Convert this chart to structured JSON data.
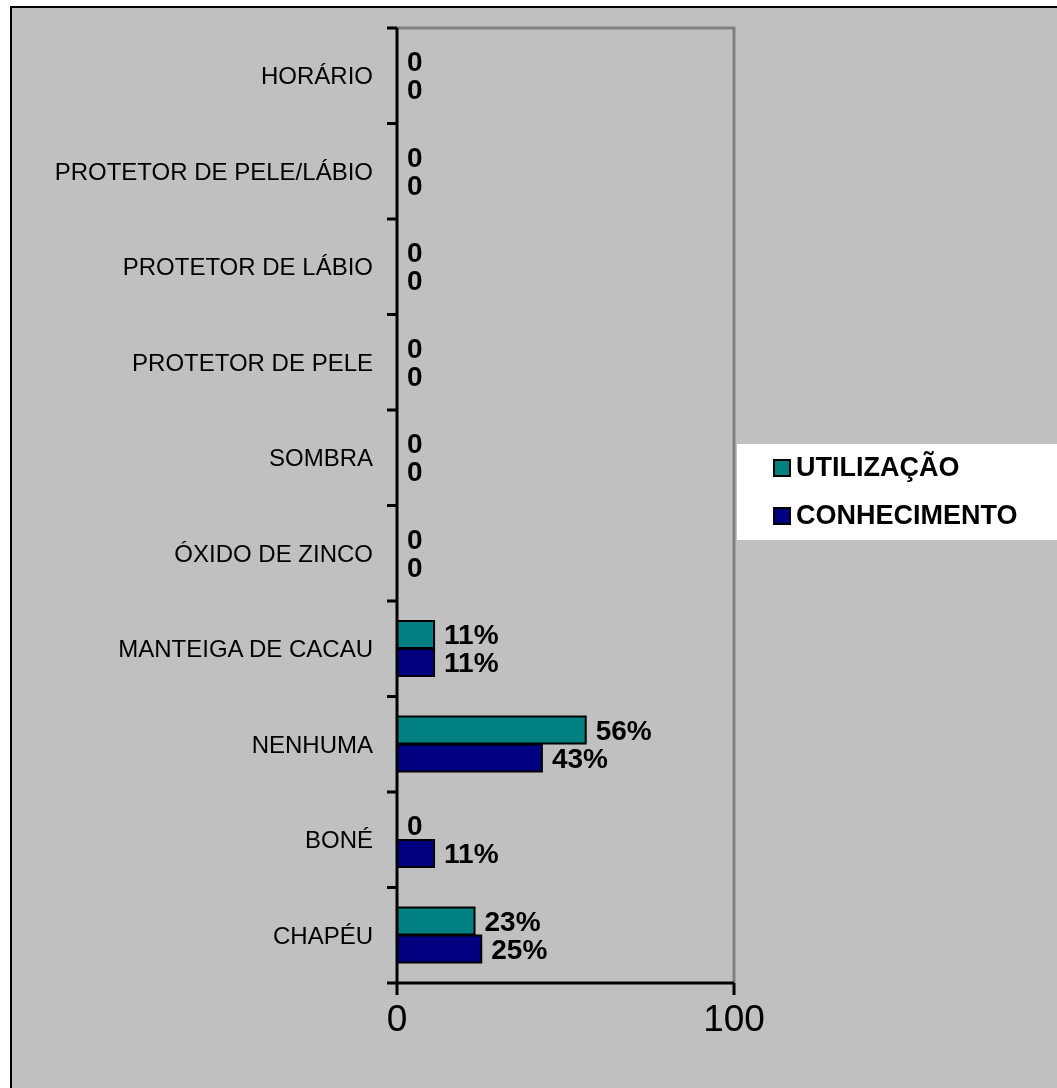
{
  "chart_data": {
    "type": "bar",
    "orientation": "horizontal",
    "categories": [
      "HORÁRIO",
      "PROTETOR DE PELE/LÁBIO",
      "PROTETOR DE LÁBIO",
      "PROTETOR DE PELE",
      "SOMBRA",
      "ÓXIDO DE ZINCO",
      "MANTEIGA DE CACAU",
      "NENHUMA",
      "BONÉ",
      "CHAPÉU"
    ],
    "series": [
      {
        "name": "UTILIZAÇÃO",
        "color": "#008080",
        "values": [
          0,
          0,
          0,
          0,
          0,
          0,
          11,
          56,
          0,
          23
        ],
        "value_labels": [
          "0",
          "0",
          "0",
          "0",
          "0",
          "0",
          "11%",
          "56%",
          "0",
          "23%"
        ]
      },
      {
        "name": "CONHECIMENTO",
        "color": "#000080",
        "values": [
          0,
          0,
          0,
          0,
          0,
          0,
          11,
          43,
          11,
          25
        ],
        "value_labels": [
          "0",
          "0",
          "0",
          "0",
          "0",
          "0",
          "11%",
          "43%",
          "11%",
          "25%"
        ]
      }
    ],
    "xlim": [
      0,
      100
    ],
    "xticks": [
      0,
      100
    ],
    "legend": "right"
  }
}
